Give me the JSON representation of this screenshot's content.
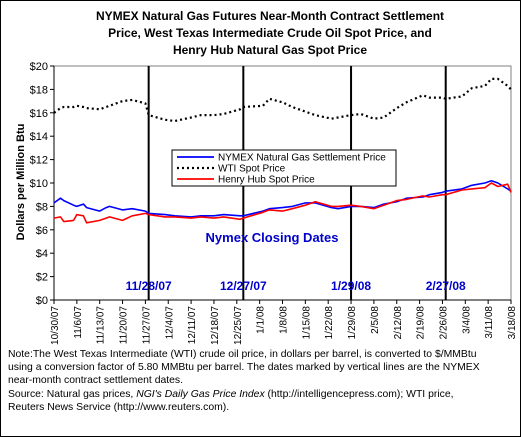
{
  "chart_data": {
    "type": "line",
    "title": "NYMEX Natural Gas Futures Near-Month Contract Settlement Price, West Texas Intermediate Crude Oil Spot Price, and Henry Hub Natural Gas Spot Price",
    "title_lines": [
      "NYMEX Natural Gas Futures Near-Month Contract Settlement",
      "Price, West Texas Intermediate Crude Oil Spot Price, and",
      "Henry Hub Natural Gas Spot Price"
    ],
    "xlabel": "",
    "ylabel": "Dollars per Million Btu",
    "ylim": [
      0,
      20
    ],
    "yticks": [
      0,
      2,
      4,
      6,
      8,
      10,
      12,
      14,
      16,
      18,
      20
    ],
    "ytick_labels": [
      "$0",
      "$2",
      "$4",
      "$6",
      "$8",
      "$10",
      "$12",
      "$14",
      "$16",
      "$18",
      "$20"
    ],
    "x_dates": [
      "2007-10-30",
      "2008-03-18"
    ],
    "xtick_labels": [
      "10/30/07",
      "11/6/07",
      "11/13/07",
      "11/20/07",
      "11/27/07",
      "12/4/07",
      "12/11/07",
      "12/18/07",
      "12/25/07",
      "1/1/08",
      "1/8/08",
      "1/15/08",
      "1/22/08",
      "1/29/08",
      "2/5/08",
      "2/12/08",
      "2/19/08",
      "2/26/08",
      "3/4/08",
      "3/11/08",
      "3/18/08"
    ],
    "grid": false,
    "legend_position": "center",
    "annotation": "Nymex Closing Dates",
    "closing_dates": [
      "11/28/07",
      "12/27/07",
      "1/29/08",
      "2/27/08"
    ],
    "series": [
      {
        "name": "NYMEX Natural Gas Settlement Price",
        "color": "#0000ff",
        "style": "solid",
        "x": [
          "10/30/07",
          "11/1/07",
          "11/2/07",
          "11/5/07",
          "11/6/07",
          "11/8/07",
          "11/9/07",
          "11/13/07",
          "11/15/07",
          "11/16/07",
          "11/20/07",
          "11/23/07",
          "11/27/07",
          "11/28/07",
          "12/3/07",
          "12/6/07",
          "12/11/07",
          "12/14/07",
          "12/18/07",
          "12/21/07",
          "12/26/07",
          "12/27/07",
          "1/2/08",
          "1/4/08",
          "1/8/08",
          "1/11/08",
          "1/15/08",
          "1/18/08",
          "1/23/08",
          "1/25/08",
          "1/29/08",
          "2/1/08",
          "2/5/08",
          "2/8/08",
          "2/12/08",
          "2/15/08",
          "2/20/08",
          "2/22/08",
          "2/26/08",
          "2/27/08",
          "3/3/08",
          "3/6/08",
          "3/10/08",
          "3/12/08",
          "3/14/08",
          "3/17/08",
          "3/18/08"
        ],
        "values": [
          8.3,
          8.7,
          8.5,
          8.1,
          8.0,
          8.2,
          7.9,
          7.6,
          7.9,
          8.0,
          7.7,
          7.8,
          7.6,
          7.4,
          7.3,
          7.2,
          7.1,
          7.2,
          7.2,
          7.3,
          7.2,
          7.2,
          7.6,
          7.8,
          7.9,
          8.0,
          8.3,
          8.3,
          7.9,
          7.8,
          8.0,
          8.0,
          7.9,
          8.2,
          8.4,
          8.7,
          8.8,
          9.0,
          9.2,
          9.3,
          9.5,
          9.8,
          10.0,
          10.2,
          10.0,
          9.5,
          9.3
        ]
      },
      {
        "name": "WTI Spot Price",
        "color": "#000000",
        "style": "dotted",
        "x": [
          "10/30/07",
          "11/1/07",
          "11/2/07",
          "11/5/07",
          "11/6/07",
          "11/8/07",
          "11/9/07",
          "11/13/07",
          "11/15/07",
          "11/16/07",
          "11/20/07",
          "11/23/07",
          "11/27/07",
          "11/28/07",
          "12/3/07",
          "12/6/07",
          "12/11/07",
          "12/14/07",
          "12/18/07",
          "12/21/07",
          "12/26/07",
          "12/27/07",
          "1/2/08",
          "1/4/08",
          "1/8/08",
          "1/11/08",
          "1/15/08",
          "1/18/08",
          "1/23/08",
          "1/25/08",
          "1/29/08",
          "2/1/08",
          "2/5/08",
          "2/8/08",
          "2/12/08",
          "2/15/08",
          "2/20/08",
          "2/22/08",
          "2/26/08",
          "2/27/08",
          "3/3/08",
          "3/6/08",
          "3/10/08",
          "3/12/08",
          "3/14/08",
          "3/17/08",
          "3/18/08"
        ],
        "values": [
          16.0,
          16.4,
          16.5,
          16.5,
          16.6,
          16.5,
          16.4,
          16.3,
          16.5,
          16.6,
          17.0,
          17.1,
          16.8,
          15.8,
          15.4,
          15.3,
          15.6,
          15.8,
          15.8,
          15.9,
          16.3,
          16.5,
          16.6,
          17.2,
          16.9,
          16.5,
          16.1,
          15.8,
          15.5,
          15.6,
          15.8,
          15.9,
          15.5,
          15.6,
          16.4,
          16.9,
          17.5,
          17.3,
          17.3,
          17.2,
          17.4,
          18.1,
          18.3,
          18.9,
          18.9,
          18.3,
          18.0
        ]
      },
      {
        "name": "Henry Hub Spot Price",
        "color": "#ff0000",
        "style": "solid",
        "x": [
          "10/30/07",
          "11/1/07",
          "11/2/07",
          "11/5/07",
          "11/6/07",
          "11/8/07",
          "11/9/07",
          "11/13/07",
          "11/15/07",
          "11/16/07",
          "11/20/07",
          "11/23/07",
          "11/27/07",
          "11/28/07",
          "12/3/07",
          "12/6/07",
          "12/11/07",
          "12/14/07",
          "12/18/07",
          "12/21/07",
          "12/26/07",
          "12/27/07",
          "1/2/08",
          "1/4/08",
          "1/8/08",
          "1/11/08",
          "1/15/08",
          "1/18/08",
          "1/23/08",
          "1/25/08",
          "1/29/08",
          "2/1/08",
          "2/5/08",
          "2/8/08",
          "2/12/08",
          "2/15/08",
          "2/20/08",
          "2/22/08",
          "2/26/08",
          "2/27/08",
          "3/3/08",
          "3/6/08",
          "3/10/08",
          "3/12/08",
          "3/14/08",
          "3/17/08",
          "3/18/08"
        ],
        "values": [
          7.0,
          7.1,
          6.7,
          6.8,
          7.3,
          7.2,
          6.6,
          6.8,
          7.0,
          7.1,
          6.8,
          7.2,
          7.4,
          7.3,
          7.1,
          7.1,
          7.0,
          7.1,
          7.0,
          7.1,
          6.9,
          7.0,
          7.5,
          7.7,
          7.6,
          7.8,
          8.1,
          8.4,
          8.0,
          8.0,
          8.1,
          8.0,
          7.8,
          8.1,
          8.5,
          8.6,
          8.9,
          8.8,
          9.0,
          9.0,
          9.4,
          9.5,
          9.6,
          10.0,
          9.7,
          9.9,
          9.2
        ]
      }
    ]
  },
  "note_lines": [
    "Note:The West Texas Intermediate (WTI) crude oil price, in dollars per barrel,  is converted to $/MMBtu",
    "using a conversion factor of 5.80 MMBtu per barrel.  The dates marked by vertical lines are the NYMEX",
    "near-month contract settlement dates."
  ],
  "source": {
    "prefix": "Source: Natural gas prices, ",
    "publication": "NGI's Daily Gas Price Index",
    "suffix": " (http://intelligencepress.com); WTI price,",
    "line2": "Reuters News Service (http://www.reuters.com)."
  }
}
